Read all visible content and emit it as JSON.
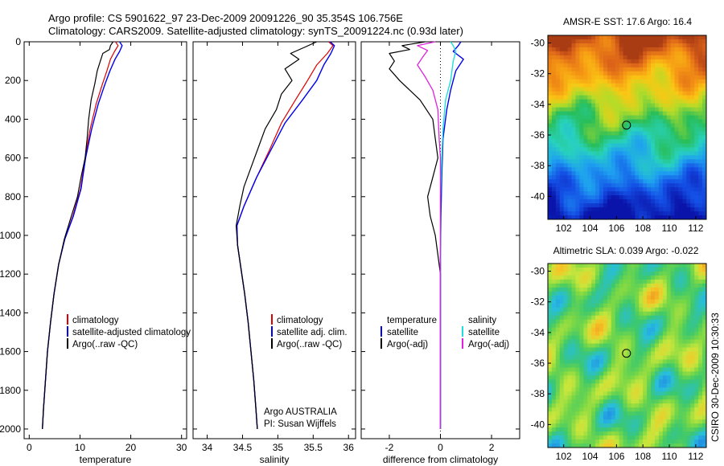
{
  "header": {
    "title_line1": "Argo profile: CS 5901622_97 23-Dec-2009 20091226_90 35.354S 106.756E",
    "title_line2": "Climatology: CARS2009. Satellite-adjusted climatology: synTS_20091224.nc (0.93d later)"
  },
  "side_label": "CSIRO 30-Dec-2009 10:30:33",
  "colors": {
    "climatology": "#dd0000",
    "satellite": "#0000ee",
    "argo": "#000000",
    "satellite_salinity": "#22dddd",
    "argo_salinity": "#dd22dd"
  },
  "chart_data": [
    {
      "type": "line",
      "id": "temperature",
      "xlabel": "temperature",
      "xlim": [
        -1,
        31
      ],
      "ylim": [
        2050,
        0
      ],
      "xticks": [
        0,
        10,
        20,
        30
      ],
      "yticks": [
        0,
        200,
        400,
        600,
        800,
        1000,
        1200,
        1400,
        1600,
        1800,
        2000
      ],
      "legend": [
        "climatology",
        "satellite-adjusted climatology",
        "Argo(..raw -QC)"
      ],
      "series": [
        {
          "name": "climatology",
          "color": "#dd0000",
          "width": 1.2,
          "points": [
            [
              17.0,
              0
            ],
            [
              17.5,
              20
            ],
            [
              16.8,
              50
            ],
            [
              16.0,
              90
            ],
            [
              15.3,
              150
            ],
            [
              14.4,
              220
            ],
            [
              13.2,
              320
            ],
            [
              12.0,
              450
            ],
            [
              11.0,
              600
            ],
            [
              10.1,
              760
            ],
            [
              8.6,
              900
            ],
            [
              7.0,
              1020
            ],
            [
              5.8,
              1150
            ],
            [
              4.9,
              1300
            ],
            [
              4.2,
              1450
            ],
            [
              3.6,
              1600
            ],
            [
              3.2,
              1750
            ],
            [
              2.8,
              1900
            ],
            [
              2.6,
              2000
            ]
          ]
        },
        {
          "name": "satellite-adjusted climatology",
          "color": "#0000ee",
          "width": 1.4,
          "points": [
            [
              17.8,
              0
            ],
            [
              18.3,
              20
            ],
            [
              17.8,
              50
            ],
            [
              16.9,
              90
            ],
            [
              15.9,
              150
            ],
            [
              14.9,
              220
            ],
            [
              13.6,
              320
            ],
            [
              12.3,
              450
            ],
            [
              11.1,
              600
            ],
            [
              10.2,
              760
            ],
            [
              8.7,
              900
            ],
            [
              7.0,
              1020
            ],
            [
              5.8,
              1150
            ],
            [
              4.9,
              1300
            ],
            [
              4.2,
              1450
            ],
            [
              3.6,
              1600
            ],
            [
              3.2,
              1750
            ],
            [
              2.8,
              1900
            ],
            [
              2.6,
              2000
            ]
          ]
        },
        {
          "name": "Argo(..raw -QC)",
          "color": "#000000",
          "width": 1.2,
          "points": [
            [
              16.5,
              0
            ],
            [
              16.0,
              20
            ],
            [
              15.8,
              40
            ],
            [
              14.5,
              60
            ],
            [
              14.0,
              100
            ],
            [
              13.4,
              150
            ],
            [
              12.9,
              220
            ],
            [
              12.2,
              300
            ],
            [
              11.7,
              400
            ],
            [
              11.4,
              500
            ],
            [
              11.0,
              600
            ],
            [
              10.2,
              700
            ],
            [
              9.5,
              800
            ],
            [
              8.3,
              900
            ],
            [
              6.9,
              1020
            ],
            [
              5.8,
              1150
            ],
            [
              4.9,
              1300
            ],
            [
              4.2,
              1450
            ],
            [
              3.6,
              1600
            ],
            [
              3.2,
              1750
            ],
            [
              2.8,
              1900
            ],
            [
              2.6,
              2000
            ]
          ]
        }
      ]
    },
    {
      "type": "line",
      "id": "salinity",
      "xlabel": "salinity",
      "xlim": [
        33.8,
        36.1
      ],
      "ylim": [
        2050,
        0
      ],
      "xticks": [
        34,
        34.5,
        35,
        35.5,
        36
      ],
      "yticks": [
        0,
        200,
        400,
        600,
        800,
        1000,
        1200,
        1400,
        1600,
        1800,
        2000
      ],
      "legend": [
        "climatology",
        "satellite adj. clim.",
        "Argo(..raw -QC)"
      ],
      "annotation": [
        "Argo AUSTRALIA",
        "PI: Susan Wijffels"
      ],
      "series": [
        {
          "name": "climatology",
          "color": "#dd0000",
          "width": 1.2,
          "points": [
            [
              35.72,
              0
            ],
            [
              35.78,
              20
            ],
            [
              35.7,
              60
            ],
            [
              35.55,
              120
            ],
            [
              35.42,
              200
            ],
            [
              35.25,
              300
            ],
            [
              35.05,
              420
            ],
            [
              34.88,
              560
            ],
            [
              34.7,
              700
            ],
            [
              34.52,
              850
            ],
            [
              34.42,
              950
            ],
            [
              34.43,
              1050
            ],
            [
              34.47,
              1150
            ],
            [
              34.53,
              1300
            ],
            [
              34.58,
              1450
            ],
            [
              34.62,
              1600
            ],
            [
              34.66,
              1750
            ],
            [
              34.69,
              1900
            ],
            [
              34.71,
              2000
            ]
          ]
        },
        {
          "name": "satellite adj. clim.",
          "color": "#0000ee",
          "width": 1.4,
          "points": [
            [
              35.74,
              0
            ],
            [
              35.8,
              20
            ],
            [
              35.75,
              60
            ],
            [
              35.65,
              120
            ],
            [
              35.55,
              200
            ],
            [
              35.35,
              300
            ],
            [
              35.1,
              420
            ],
            [
              34.9,
              560
            ],
            [
              34.7,
              700
            ],
            [
              34.52,
              850
            ],
            [
              34.42,
              950
            ],
            [
              34.43,
              1050
            ],
            [
              34.47,
              1150
            ],
            [
              34.53,
              1300
            ],
            [
              34.58,
              1450
            ],
            [
              34.62,
              1600
            ],
            [
              34.66,
              1750
            ],
            [
              34.69,
              1900
            ],
            [
              34.71,
              2000
            ]
          ]
        },
        {
          "name": "Argo(..raw -QC)",
          "color": "#000000",
          "width": 1.2,
          "points": [
            [
              35.55,
              0
            ],
            [
              35.4,
              25
            ],
            [
              35.18,
              60
            ],
            [
              35.3,
              90
            ],
            [
              35.1,
              140
            ],
            [
              35.2,
              200
            ],
            [
              35.05,
              270
            ],
            [
              34.98,
              350
            ],
            [
              34.82,
              450
            ],
            [
              34.72,
              550
            ],
            [
              34.62,
              650
            ],
            [
              34.52,
              750
            ],
            [
              34.46,
              850
            ],
            [
              34.41,
              950
            ],
            [
              34.43,
              1050
            ],
            [
              34.47,
              1150
            ],
            [
              34.53,
              1300
            ],
            [
              34.58,
              1450
            ],
            [
              34.62,
              1600
            ],
            [
              34.66,
              1750
            ],
            [
              34.69,
              1900
            ],
            [
              34.71,
              2000
            ]
          ]
        }
      ]
    },
    {
      "type": "line",
      "id": "difference",
      "xlabel": "difference from climatology",
      "xlim": [
        -3.1,
        3.1
      ],
      "ylim": [
        2050,
        0
      ],
      "xticks": [
        -2,
        0,
        2
      ],
      "yticks": [
        0,
        200,
        400,
        600,
        800,
        1000,
        1200,
        1400,
        1600,
        1800,
        2000
      ],
      "legend_left": [
        "temperature",
        "satellite",
        "Argo(-adj)"
      ],
      "legend_right": [
        "salinity",
        "satellite",
        "Argo(-adj)"
      ],
      "series": [
        {
          "name": "satellite",
          "color": "#0000ee",
          "width": 1.4,
          "points": [
            [
              0.8,
              0
            ],
            [
              0.7,
              20
            ],
            [
              0.5,
              50
            ],
            [
              0.9,
              90
            ],
            [
              0.6,
              150
            ],
            [
              0.4,
              250
            ],
            [
              0.25,
              350
            ],
            [
              0.1,
              500
            ],
            [
              0.05,
              700
            ],
            [
              0.02,
              900
            ],
            [
              0,
              1100
            ],
            [
              0,
              1400
            ],
            [
              0,
              1700
            ],
            [
              0,
              2000
            ]
          ]
        },
        {
          "name": "Argo(-adj)",
          "color": "#000000",
          "width": 1.2,
          "points": [
            [
              -0.6,
              0
            ],
            [
              -1.5,
              20
            ],
            [
              -1.2,
              40
            ],
            [
              -2.0,
              60
            ],
            [
              -1.8,
              100
            ],
            [
              -2.0,
              140
            ],
            [
              -1.6,
              200
            ],
            [
              -0.8,
              300
            ],
            [
              -0.3,
              400
            ],
            [
              -0.2,
              500
            ],
            [
              -0.1,
              600
            ],
            [
              -0.3,
              700
            ],
            [
              -0.5,
              800
            ],
            [
              -0.4,
              900
            ],
            [
              -0.2,
              1000
            ],
            [
              -0.1,
              1100
            ],
            [
              0,
              1200
            ],
            [
              0,
              1400
            ],
            [
              0,
              1700
            ],
            [
              0,
              2000
            ]
          ]
        },
        {
          "name": "salinity satellite",
          "color": "#22dddd",
          "width": 1.4,
          "points": [
            [
              0.4,
              0
            ],
            [
              0.5,
              20
            ],
            [
              0.6,
              50
            ],
            [
              0.5,
              100
            ],
            [
              0.4,
              200
            ],
            [
              0.2,
              300
            ],
            [
              0.1,
              450
            ],
            [
              0.05,
              600
            ],
            [
              0,
              800
            ],
            [
              0,
              1100
            ],
            [
              0,
              1400
            ],
            [
              0,
              1700
            ],
            [
              0,
              2000
            ]
          ]
        },
        {
          "name": "salinity Argo(-adj)",
          "color": "#dd22dd",
          "width": 1.3,
          "points": [
            [
              -0.2,
              0
            ],
            [
              -0.9,
              20
            ],
            [
              -0.5,
              45
            ],
            [
              -0.7,
              80
            ],
            [
              -0.9,
              120
            ],
            [
              -0.6,
              180
            ],
            [
              -0.3,
              250
            ],
            [
              -0.1,
              350
            ],
            [
              -0.05,
              500
            ],
            [
              0,
              600
            ],
            [
              0,
              800
            ],
            [
              0,
              1100
            ],
            [
              0,
              1400
            ],
            [
              0,
              1700
            ],
            [
              0,
              2000
            ]
          ]
        }
      ]
    },
    {
      "type": "heatmap",
      "id": "sst",
      "title": "AMSR-E SST: 17.6 Argo: 16.4",
      "xlim": [
        100.8,
        112.8
      ],
      "ylim": [
        -41.5,
        -29.5
      ],
      "xticks": [
        102,
        104,
        106,
        108,
        110,
        112
      ],
      "yticks": [
        -30,
        -32,
        -34,
        -36,
        -38,
        -40
      ],
      "marker": [
        106.756,
        -35.354
      ]
    },
    {
      "type": "heatmap",
      "id": "sla",
      "title": "Altimetric SLA: 0.039 Argo: -0.022",
      "xlim": [
        100.8,
        112.8
      ],
      "ylim": [
        -41.5,
        -29.5
      ],
      "xticks": [
        102,
        104,
        106,
        108,
        110,
        112
      ],
      "yticks": [
        -30,
        -32,
        -34,
        -36,
        -38,
        -40
      ],
      "marker": [
        106.756,
        -35.354
      ]
    }
  ]
}
